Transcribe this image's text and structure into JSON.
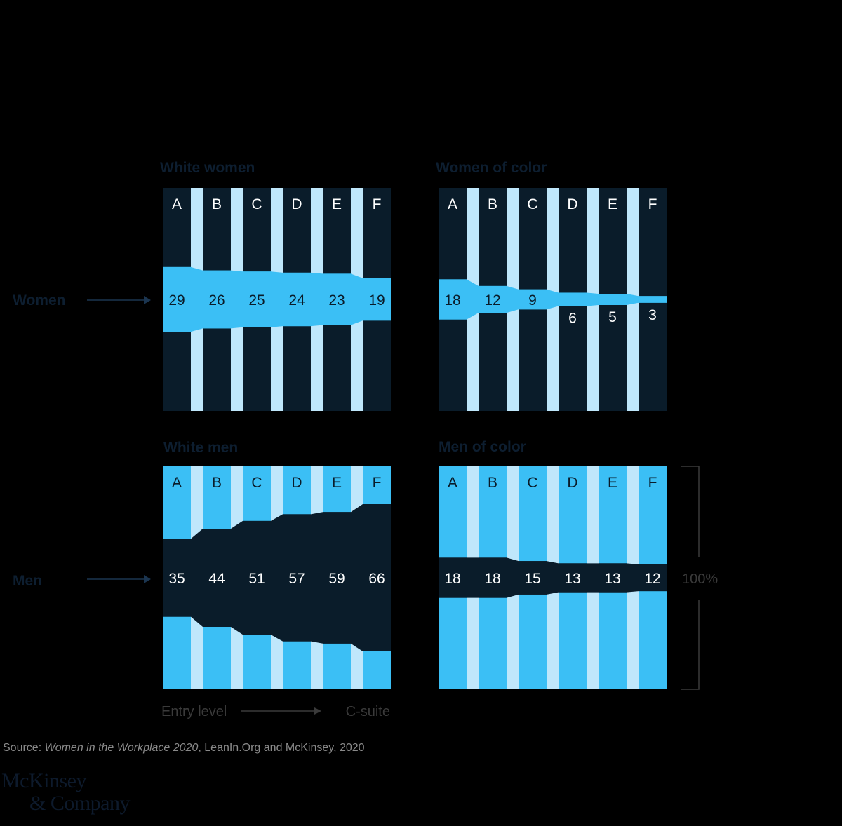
{
  "colors": {
    "background": "#000000",
    "band": "#3BBFF5",
    "dark": "#0A1C2A",
    "gap": "#BFE7FB",
    "title": "#0D1E30",
    "arrow": "#1B3550",
    "muted": "#3A3A3A",
    "source": "#8A8A8A"
  },
  "row_labels": {
    "women": "Women",
    "men": "Men"
  },
  "axis": {
    "start": "Entry level",
    "end": "C-suite",
    "bracket_label": "100%"
  },
  "source": {
    "prefix": "Source: ",
    "title": "Women in the Workplace 2020",
    "rest": ", LeanIn.Org and McKinsey, 2020"
  },
  "logo": {
    "line1": "McKinsey",
    "line2": "& Company"
  },
  "chart_data": [
    {
      "type": "bar",
      "title": "White women",
      "categories": [
        "A",
        "B",
        "C",
        "D",
        "E",
        "F"
      ],
      "values": [
        29,
        26,
        25,
        24,
        23,
        19
      ],
      "ylim": [
        0,
        100
      ]
    },
    {
      "type": "bar",
      "title": "Women of color",
      "categories": [
        "A",
        "B",
        "C",
        "D",
        "E",
        "F"
      ],
      "values": [
        18,
        12,
        9,
        6,
        5,
        3
      ],
      "ylim": [
        0,
        100
      ]
    },
    {
      "type": "bar",
      "title": "White men",
      "categories": [
        "A",
        "B",
        "C",
        "D",
        "E",
        "F"
      ],
      "values": [
        35,
        44,
        51,
        57,
        59,
        66
      ],
      "ylim": [
        0,
        100
      ]
    },
    {
      "type": "bar",
      "title": "Men of color",
      "categories": [
        "A",
        "B",
        "C",
        "D",
        "E",
        "F"
      ],
      "values": [
        18,
        18,
        15,
        13,
        13,
        12
      ],
      "ylim": [
        0,
        100
      ]
    }
  ]
}
